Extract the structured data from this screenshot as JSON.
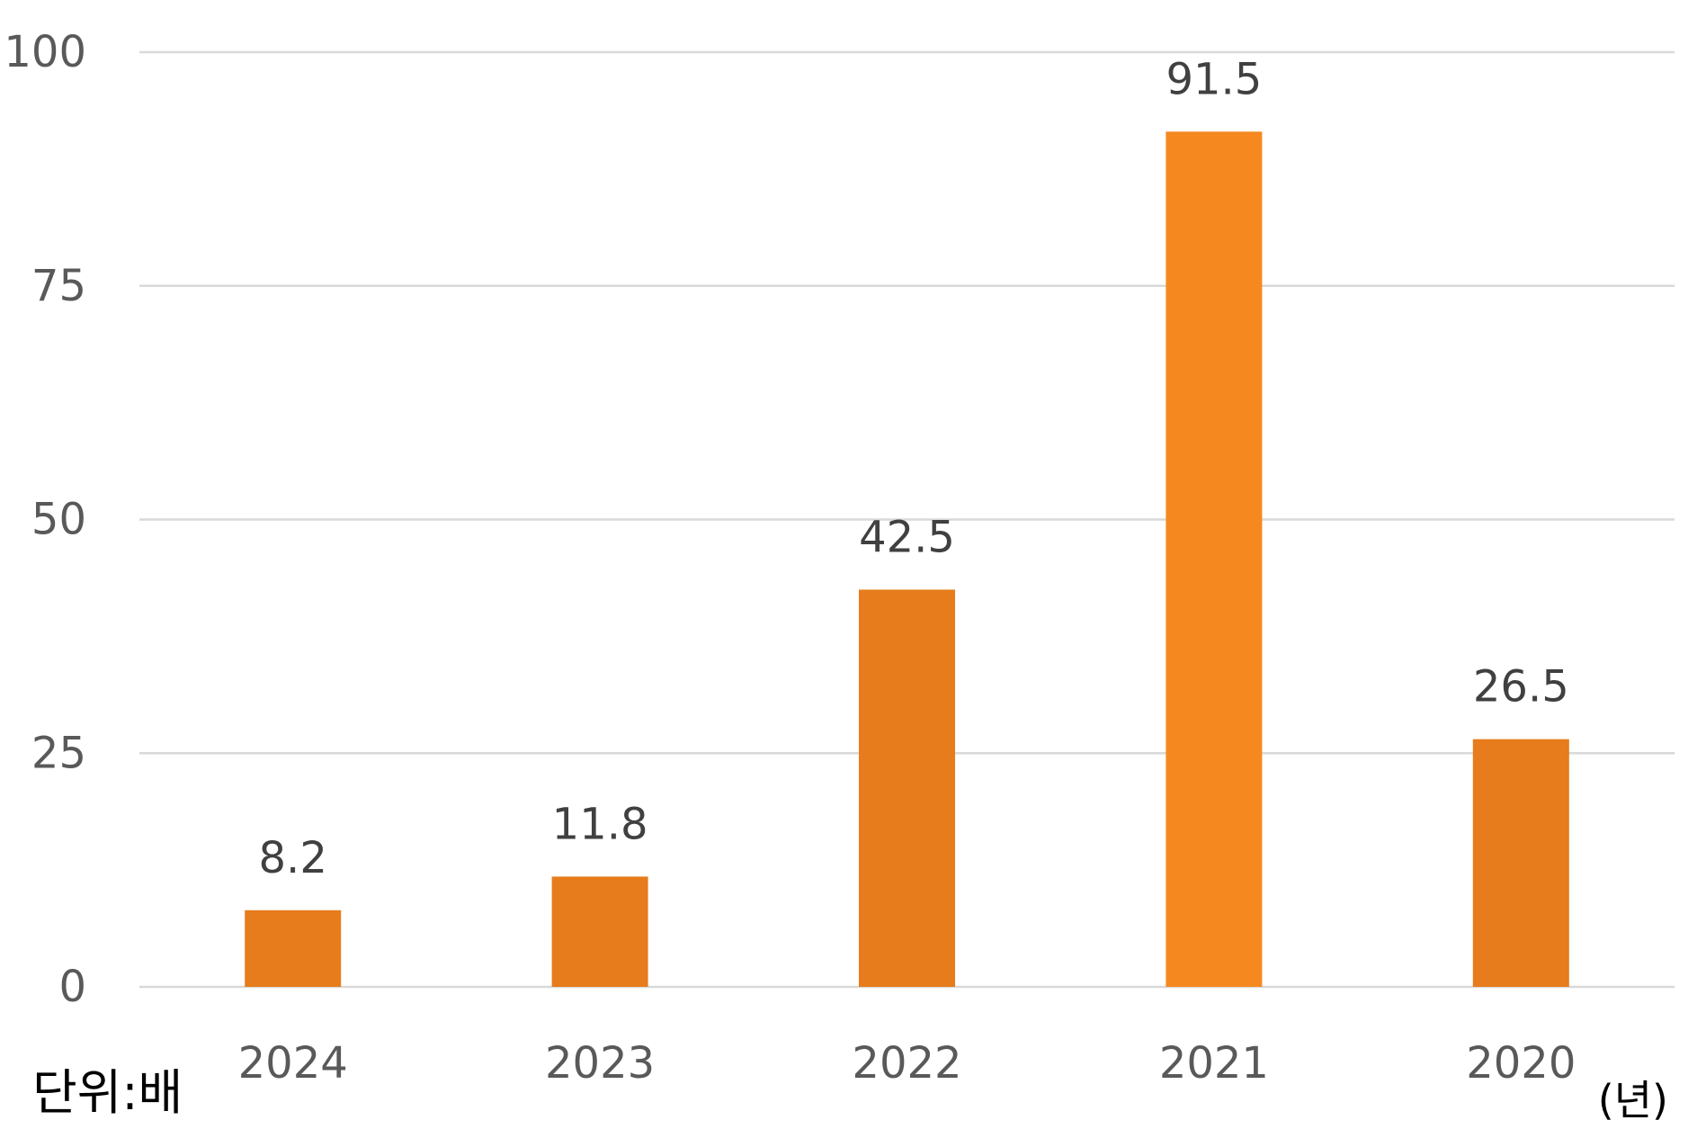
{
  "chart_data": {
    "type": "bar",
    "categories": [
      "2024",
      "2023",
      "2022",
      "2021",
      "2020"
    ],
    "values": [
      8.2,
      11.8,
      42.5,
      91.5,
      26.5
    ],
    "value_labels": [
      "8.2",
      "11.8",
      "42.5",
      "91.5",
      "26.5"
    ],
    "ylim": [
      0,
      100
    ],
    "yticks": [
      "0",
      "25",
      "50",
      "75",
      "100"
    ],
    "grid": true,
    "legend": "none",
    "unit_label": "단위:배",
    "x_unit_label": "(년)",
    "colors": {
      "bar": "#E67C1B",
      "bar_highlight": "#F5891F",
      "grid": "#D9D9D9",
      "tick_text": "#595959",
      "label_text": "#404040"
    },
    "highlight_index": 3
  }
}
